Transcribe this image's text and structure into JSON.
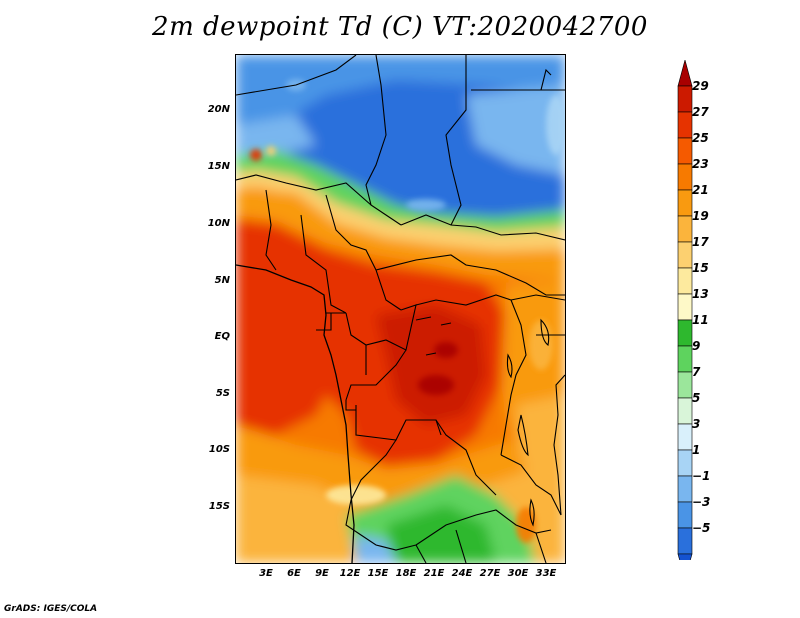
{
  "title": "2m dewpoint Td (C) VT:2020042700",
  "map": {
    "y_ticks": [
      "20N",
      "15N",
      "10N",
      "5N",
      "EQ",
      "5S",
      "10S",
      "15S"
    ],
    "x_ticks": [
      "3E",
      "6E",
      "9E",
      "12E",
      "15E",
      "18E",
      "21E",
      "24E",
      "27E",
      "30E",
      "33E"
    ]
  },
  "colorbar": {
    "labels": [
      "29",
      "27",
      "25",
      "23",
      "21",
      "19",
      "17",
      "15",
      "13",
      "11",
      "9",
      "7",
      "5",
      "3",
      "1",
      "−1",
      "−3",
      "−5"
    ],
    "colors": [
      "#a80000",
      "#cc1a00",
      "#e63300",
      "#f55a00",
      "#f77a00",
      "#f99a10",
      "#fbb43c",
      "#fcd070",
      "#fdea9e",
      "#fef9c8",
      "#2eb82e",
      "#5ed35e",
      "#9be69b",
      "#d9f5d9",
      "#d9f0fb",
      "#a8d4f5",
      "#79b6ef",
      "#4a94e6",
      "#2a70dc",
      "#1452d0"
    ]
  },
  "footer": "GrADS: IGES/COLA"
}
